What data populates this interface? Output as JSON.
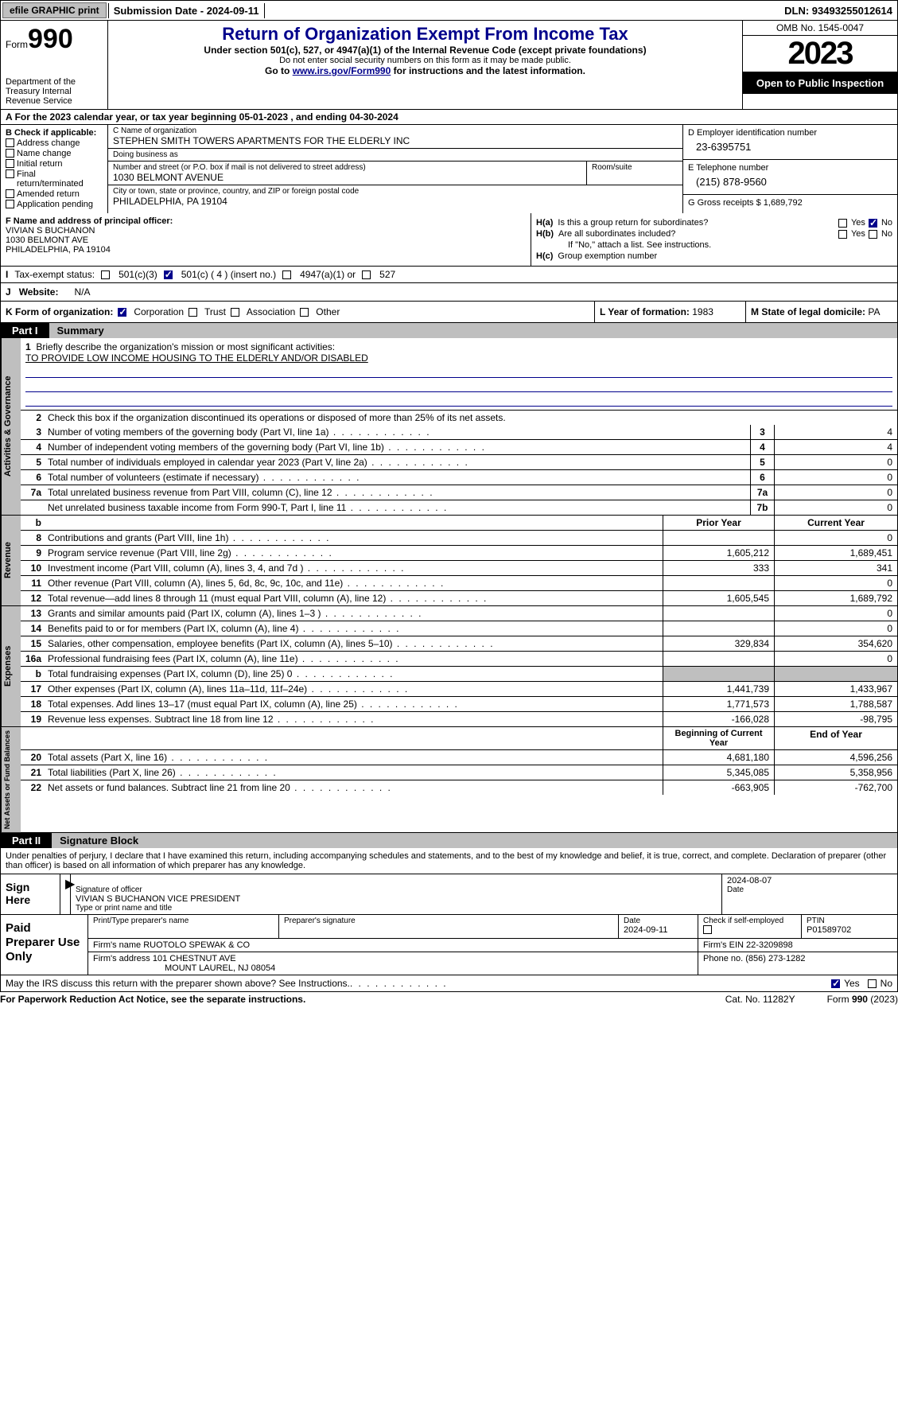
{
  "topbar": {
    "efile_btn": "efile GRAPHIC print",
    "submission": "Submission Date - 2024-09-11",
    "dln": "DLN: 93493255012614"
  },
  "header": {
    "form_prefix": "Form",
    "form_num": "990",
    "title": "Return of Organization Exempt From Income Tax",
    "subtitle": "Under section 501(c), 527, or 4947(a)(1) of the Internal Revenue Code (except private foundations)",
    "note": "Do not enter social security numbers on this form as it may be made public.",
    "goto_prefix": "Go to ",
    "goto_link": "www.irs.gov/Form990",
    "goto_suffix": " for instructions and the latest information.",
    "dept": "Department of the Treasury\nInternal Revenue Service",
    "omb": "OMB No. 1545-0047",
    "year": "2023",
    "inspection": "Open to Public Inspection"
  },
  "line_a": "For the 2023 calendar year, or tax year beginning 05-01-2023   , and ending 04-30-2024",
  "section_b": {
    "hdr": "B Check if applicable:",
    "items": [
      "Address change",
      "Name change",
      "Initial return",
      "Final return/terminated",
      "Amended return",
      "Application pending"
    ]
  },
  "section_c": {
    "name_lbl": "C Name of organization",
    "name": "STEPHEN SMITH TOWERS APARTMENTS FOR THE ELDERLY INC",
    "dba_lbl": "Doing business as",
    "dba": "",
    "street_lbl": "Number and street (or P.O. box if mail is not delivered to street address)",
    "street": "1030 BELMONT AVENUE",
    "room_lbl": "Room/suite",
    "city_lbl": "City or town, state or province, country, and ZIP or foreign postal code",
    "city": "PHILADELPHIA, PA  19104"
  },
  "section_d": {
    "ein_lbl": "D Employer identification number",
    "ein": "23-6395751",
    "phone_lbl": "E Telephone number",
    "phone": "(215) 878-9560",
    "gross_lbl": "G Gross receipts $ ",
    "gross": "1,689,792"
  },
  "section_f": {
    "lbl": "F  Name and address of principal officer:",
    "name": "VIVIAN S BUCHANON",
    "addr1": "1030 BELMONT AVE",
    "addr2": "PHILADELPHIA, PA  19104"
  },
  "section_h": {
    "ha_lbl": "H(a)",
    "ha_txt": "Is this a group return for subordinates?",
    "hb_lbl": "H(b)",
    "hb_txt": "Are all subordinates included?",
    "hb_note": "If \"No,\" attach a list. See instructions.",
    "hc_lbl": "H(c)",
    "hc_txt": "Group exemption number ",
    "yes": "Yes",
    "no": "No"
  },
  "section_i": {
    "lbl": "Tax-exempt status:",
    "opts": [
      "501(c)(3)",
      "501(c) ( 4 ) (insert no.)",
      "4947(a)(1) or",
      "527"
    ]
  },
  "section_j": {
    "lbl": "Website:",
    "val": "N/A"
  },
  "section_k": {
    "lbl": "K Form of organization:",
    "opts": [
      "Corporation",
      "Trust",
      "Association",
      "Other"
    ]
  },
  "section_l": {
    "lbl": "L Year of formation: ",
    "val": "1983"
  },
  "section_m": {
    "lbl": "M State of legal domicile: ",
    "val": "PA"
  },
  "part1": {
    "num": "Part I",
    "title": "Summary"
  },
  "summary": {
    "gov_tab": "Activities & Governance",
    "rev_tab": "Revenue",
    "exp_tab": "Expenses",
    "net_tab": "Net Assets or Fund Balances",
    "line1_lbl": "Briefly describe the organization's mission or most significant activities:",
    "mission": "TO PROVIDE LOW INCOME HOUSING TO THE ELDERLY AND/OR DISABLED",
    "line2": "Check this box      if the organization discontinued its operations or disposed of more than 25% of its net assets.",
    "rows_gov": [
      {
        "n": "3",
        "d": "Number of voting members of the governing body (Part VI, line 1a)",
        "b": "3",
        "v": "4"
      },
      {
        "n": "4",
        "d": "Number of independent voting members of the governing body (Part VI, line 1b)",
        "b": "4",
        "v": "4"
      },
      {
        "n": "5",
        "d": "Total number of individuals employed in calendar year 2023 (Part V, line 2a)",
        "b": "5",
        "v": "0"
      },
      {
        "n": "6",
        "d": "Total number of volunteers (estimate if necessary)",
        "b": "6",
        "v": "0"
      },
      {
        "n": "7a",
        "d": "Total unrelated business revenue from Part VIII, column (C), line 12",
        "b": "7a",
        "v": "0"
      },
      {
        "n": "",
        "d": "Net unrelated business taxable income from Form 990-T, Part I, line 11",
        "b": "7b",
        "v": "0"
      }
    ],
    "prior_hdr": "Prior Year",
    "current_hdr": "Current Year",
    "rows_rev": [
      {
        "n": "8",
        "d": "Contributions and grants (Part VIII, line 1h)",
        "p": "",
        "c": "0"
      },
      {
        "n": "9",
        "d": "Program service revenue (Part VIII, line 2g)",
        "p": "1,605,212",
        "c": "1,689,451"
      },
      {
        "n": "10",
        "d": "Investment income (Part VIII, column (A), lines 3, 4, and 7d )",
        "p": "333",
        "c": "341"
      },
      {
        "n": "11",
        "d": "Other revenue (Part VIII, column (A), lines 5, 6d, 8c, 9c, 10c, and 11e)",
        "p": "",
        "c": "0"
      },
      {
        "n": "12",
        "d": "Total revenue—add lines 8 through 11 (must equal Part VIII, column (A), line 12)",
        "p": "1,605,545",
        "c": "1,689,792"
      }
    ],
    "rows_exp": [
      {
        "n": "13",
        "d": "Grants and similar amounts paid (Part IX, column (A), lines 1–3 )",
        "p": "",
        "c": "0"
      },
      {
        "n": "14",
        "d": "Benefits paid to or for members (Part IX, column (A), line 4)",
        "p": "",
        "c": "0"
      },
      {
        "n": "15",
        "d": "Salaries, other compensation, employee benefits (Part IX, column (A), lines 5–10)",
        "p": "329,834",
        "c": "354,620"
      },
      {
        "n": "16a",
        "d": "Professional fundraising fees (Part IX, column (A), line 11e)",
        "p": "",
        "c": "0"
      },
      {
        "n": "b",
        "d": "Total fundraising expenses (Part IX, column (D), line 25) 0",
        "p": "",
        "c": "",
        "grey": true
      },
      {
        "n": "17",
        "d": "Other expenses (Part IX, column (A), lines 11a–11d, 11f–24e)",
        "p": "1,441,739",
        "c": "1,433,967"
      },
      {
        "n": "18",
        "d": "Total expenses. Add lines 13–17 (must equal Part IX, column (A), line 25)",
        "p": "1,771,573",
        "c": "1,788,587"
      },
      {
        "n": "19",
        "d": "Revenue less expenses. Subtract line 18 from line 12",
        "p": "-166,028",
        "c": "-98,795"
      }
    ],
    "begin_hdr": "Beginning of Current Year",
    "end_hdr": "End of Year",
    "rows_net": [
      {
        "n": "20",
        "d": "Total assets (Part X, line 16)",
        "p": "4,681,180",
        "c": "4,596,256"
      },
      {
        "n": "21",
        "d": "Total liabilities (Part X, line 26)",
        "p": "5,345,085",
        "c": "5,358,956"
      },
      {
        "n": "22",
        "d": "Net assets or fund balances. Subtract line 21 from line 20",
        "p": "-663,905",
        "c": "-762,700"
      }
    ]
  },
  "part2": {
    "num": "Part II",
    "title": "Signature Block"
  },
  "sig": {
    "declare": "Under penalties of perjury, I declare that I have examined this return, including accompanying schedules and statements, and to the best of my knowledge and belief, it is true, correct, and complete. Declaration of preparer (other than officer) is based on all information of which preparer has any knowledge.",
    "sign_here": "Sign Here",
    "sig_officer_lbl": "Signature of officer",
    "date_lbl": "Date",
    "date_val": "2024-08-07",
    "officer_name": "VIVIAN S BUCHANON  VICE PRESIDENT",
    "type_lbl": "Type or print name and title"
  },
  "prep": {
    "title": "Paid Preparer Use Only",
    "name_lbl": "Print/Type preparer's name",
    "sig_lbl": "Preparer's signature",
    "date_lbl": "Date",
    "date_val": "2024-09-11",
    "check_lbl": "Check        if self-employed",
    "ptin_lbl": "PTIN",
    "ptin": "P01589702",
    "firm_name_lbl": "Firm's name   ",
    "firm_name": "RUOTOLO SPEWAK & CO",
    "firm_ein_lbl": "Firm's EIN  ",
    "firm_ein": "22-3209898",
    "firm_addr_lbl": "Firm's address ",
    "firm_addr1": "101 CHESTNUT AVE",
    "firm_addr2": "MOUNT LAUREL, NJ  08054",
    "phone_lbl": "Phone no. ",
    "phone": "(856) 273-1282"
  },
  "discuss": {
    "txt": "May the IRS discuss this return with the preparer shown above? See Instructions.",
    "yes": "Yes",
    "no": "No"
  },
  "footer": {
    "left": "For Paperwork Reduction Act Notice, see the separate instructions.",
    "mid": "Cat. No. 11282Y",
    "right_prefix": "Form ",
    "right_form": "990",
    "right_suffix": " (2023)"
  }
}
